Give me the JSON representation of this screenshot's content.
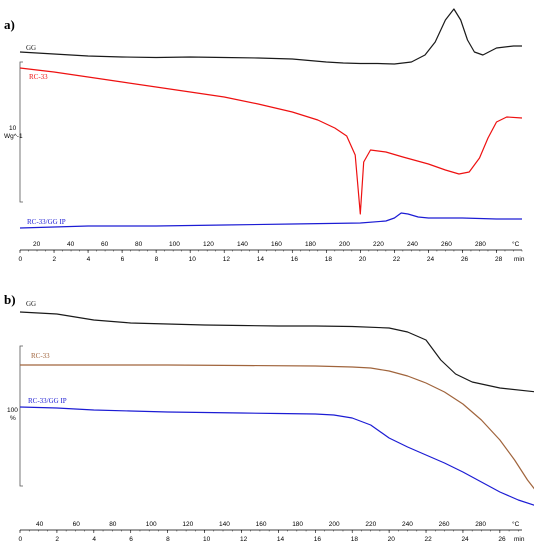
{
  "chart_data": [
    {
      "panel": "a)",
      "type": "line",
      "series": [
        {
          "name": "GG",
          "color": "#1a1a1a",
          "points": [
            [
              0,
              52
            ],
            [
              2,
              54
            ],
            [
              4,
              56
            ],
            [
              6,
              57
            ],
            [
              8,
              57.5
            ],
            [
              10,
              57
            ],
            [
              12,
              57.5
            ],
            [
              14,
              58
            ],
            [
              16,
              59
            ],
            [
              18,
              62
            ],
            [
              19,
              63
            ],
            [
              20,
              63.5
            ],
            [
              21,
              63.5
            ],
            [
              22,
              64
            ],
            [
              23,
              62
            ],
            [
              23.8,
              55
            ],
            [
              24.4,
              42
            ],
            [
              25,
              20
            ],
            [
              25.5,
              9
            ],
            [
              25.9,
              20
            ],
            [
              26.3,
              40
            ],
            [
              26.7,
              52
            ],
            [
              27.2,
              55
            ],
            [
              28,
              48
            ],
            [
              29,
              46
            ],
            [
              29.5,
              46
            ]
          ]
        },
        {
          "name": "RC-33",
          "color": "#ee1111",
          "points": [
            [
              0,
              68
            ],
            [
              2,
              72
            ],
            [
              4,
              77
            ],
            [
              6,
              82
            ],
            [
              8,
              87
            ],
            [
              10,
              92
            ],
            [
              12,
              97
            ],
            [
              14,
              104
            ],
            [
              16,
              112
            ],
            [
              17.5,
              120
            ],
            [
              18.5,
              128
            ],
            [
              19.2,
              136
            ],
            [
              19.7,
              155
            ],
            [
              20.0,
              214
            ],
            [
              20.2,
              162
            ],
            [
              20.6,
              150
            ],
            [
              21.5,
              152
            ],
            [
              22.5,
              157
            ],
            [
              24,
              164
            ],
            [
              25,
              170
            ],
            [
              25.8,
              174
            ],
            [
              26.4,
              172
            ],
            [
              27,
              158
            ],
            [
              27.5,
              138
            ],
            [
              28,
              122
            ],
            [
              28.6,
              117
            ],
            [
              29.5,
              118
            ]
          ]
        },
        {
          "name": "RC-33/GG IP",
          "color": "#1c1cd4",
          "points": [
            [
              0,
              228
            ],
            [
              4,
              226
            ],
            [
              8,
              226
            ],
            [
              12,
              225
            ],
            [
              16,
              224
            ],
            [
              20,
              223
            ],
            [
              21.5,
              221
            ],
            [
              22,
              218
            ],
            [
              22.4,
              213
            ],
            [
              22.8,
              214
            ],
            [
              23.4,
              217
            ],
            [
              24,
              218
            ],
            [
              26,
              218
            ],
            [
              28,
              219
            ],
            [
              29.5,
              219
            ]
          ]
        }
      ],
      "x_celsius_ticks": [
        "20",
        "40",
        "60",
        "80",
        "100",
        "120",
        "140",
        "160",
        "180",
        "200",
        "220",
        "240",
        "260",
        "280",
        "°C"
      ],
      "x_min_ticks": [
        "0",
        "2",
        "4",
        "6",
        "8",
        "10",
        "12",
        "14",
        "16",
        "18",
        "20",
        "22",
        "24",
        "26",
        "28",
        "min"
      ],
      "y_scale_value": "10",
      "y_scale_unit": "Wg^-1",
      "xlim_min": [
        0,
        29.5
      ]
    },
    {
      "panel": "b)",
      "type": "line",
      "series": [
        {
          "name": "GG",
          "color": "#1a1a1a",
          "points": [
            [
              0,
              312
            ],
            [
              2,
              314
            ],
            [
              4,
              320
            ],
            [
              6,
              323
            ],
            [
              8,
              324
            ],
            [
              10,
              325
            ],
            [
              12,
              325.5
            ],
            [
              14,
              326
            ],
            [
              16,
              326
            ],
            [
              18,
              326.5
            ],
            [
              20,
              328
            ],
            [
              21,
              332
            ],
            [
              22,
              340
            ],
            [
              22.8,
              360
            ],
            [
              23.6,
              374
            ],
            [
              24.5,
              382
            ],
            [
              26,
              388
            ],
            [
              28,
              392
            ],
            [
              29.5,
              394
            ]
          ]
        },
        {
          "name": "RC-33",
          "color": "#a0643c",
          "points": [
            [
              0,
              365
            ],
            [
              4,
              365
            ],
            [
              8,
              365
            ],
            [
              12,
              365.5
            ],
            [
              16,
              366
            ],
            [
              18,
              367
            ],
            [
              19,
              368
            ],
            [
              20,
              371
            ],
            [
              21,
              376
            ],
            [
              22,
              383
            ],
            [
              23,
              392
            ],
            [
              24,
              404
            ],
            [
              25,
              420
            ],
            [
              26,
              440
            ],
            [
              26.8,
              460
            ],
            [
              27.5,
              480
            ],
            [
              28,
              492
            ],
            [
              28.5,
              498
            ],
            [
              29.5,
              498
            ]
          ]
        },
        {
          "name": "RC-33/GG IP",
          "color": "#1c1cd4",
          "points": [
            [
              0,
              407
            ],
            [
              2,
              408
            ],
            [
              4,
              410
            ],
            [
              6,
              411
            ],
            [
              8,
              412
            ],
            [
              10,
              412.5
            ],
            [
              12,
              413
            ],
            [
              14,
              413.5
            ],
            [
              16,
              414
            ],
            [
              17,
              415
            ],
            [
              18,
              418
            ],
            [
              19,
              425
            ],
            [
              20,
              438
            ],
            [
              21,
              447
            ],
            [
              22,
              455
            ],
            [
              23,
              463
            ],
            [
              24,
              472
            ],
            [
              25,
              482
            ],
            [
              26,
              492
            ],
            [
              27,
              500
            ],
            [
              28,
              506
            ],
            [
              29,
              510
            ],
            [
              29.5,
              511
            ]
          ]
        }
      ],
      "x_celsius_ticks": [
        "40",
        "60",
        "80",
        "100",
        "120",
        "140",
        "160",
        "180",
        "200",
        "220",
        "240",
        "260",
        "280",
        "°C"
      ],
      "x_min_ticks": [
        "0",
        "2",
        "4",
        "6",
        "8",
        "10",
        "12",
        "14",
        "16",
        "18",
        "20",
        "22",
        "24",
        "26",
        "min"
      ],
      "y_scale_value": "100",
      "y_scale_unit": "%",
      "xlim_min": [
        0,
        27.2
      ]
    }
  ]
}
